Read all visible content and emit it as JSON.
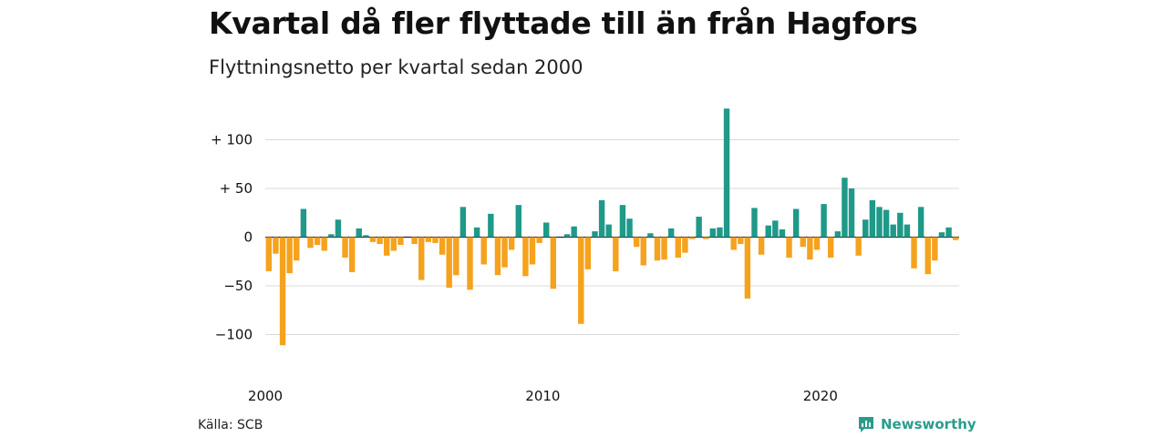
{
  "header": {
    "title": "Kvartal då fler flyttade till än från Hagfors",
    "subtitle": "Flyttningsnetto per kvartal sedan 2000"
  },
  "footer": {
    "source": "Källa: SCB",
    "brand": "Newsworthy"
  },
  "colors": {
    "positive": "#1f9988",
    "negative": "#f5a21e",
    "grid": "#d9d9d9",
    "brand": "#2a9c8c"
  },
  "chart_data": {
    "type": "bar",
    "xlabel": "",
    "ylabel": "",
    "ylim": [
      -125,
      135
    ],
    "y_ticks": [
      {
        "value": 100,
        "label": "+ 100"
      },
      {
        "value": 50,
        "label": "+  50"
      },
      {
        "value": 0,
        "label": "0"
      },
      {
        "value": -50,
        "label": "−50"
      },
      {
        "value": -100,
        "label": "−100"
      }
    ],
    "x_ticks": [
      {
        "index": 0,
        "label": "2000"
      },
      {
        "index": 40,
        "label": "2010"
      },
      {
        "index": 80,
        "label": "2020"
      }
    ],
    "grid": true,
    "legend": "none",
    "series": [
      {
        "values": [
          -35,
          -17,
          -111,
          -37,
          -24,
          29,
          -11,
          -8,
          -14,
          3,
          18,
          -21,
          -36,
          9,
          2,
          -5,
          -7,
          -19,
          -14,
          -8,
          0,
          -7,
          -44,
          -5,
          -6,
          -18,
          -52,
          -39,
          31,
          -54,
          10,
          -28,
          24,
          -39,
          -31,
          -13,
          33,
          -40,
          -28,
          -6,
          15,
          -53,
          0,
          3,
          11,
          -89,
          -33,
          6,
          38,
          13,
          -35,
          33,
          19,
          -10,
          -29,
          4,
          -24,
          -23,
          9,
          -21,
          -16,
          -2,
          21,
          -2,
          9,
          10,
          132,
          -13,
          -7,
          -63,
          30,
          -18,
          12,
          17,
          8,
          -21,
          29,
          -10,
          -23,
          -13,
          34,
          -21,
          6,
          61,
          50,
          -19,
          18,
          38,
          31,
          28,
          13,
          25,
          13,
          -32,
          31,
          -38,
          -24,
          5,
          10,
          -3
        ]
      }
    ]
  }
}
